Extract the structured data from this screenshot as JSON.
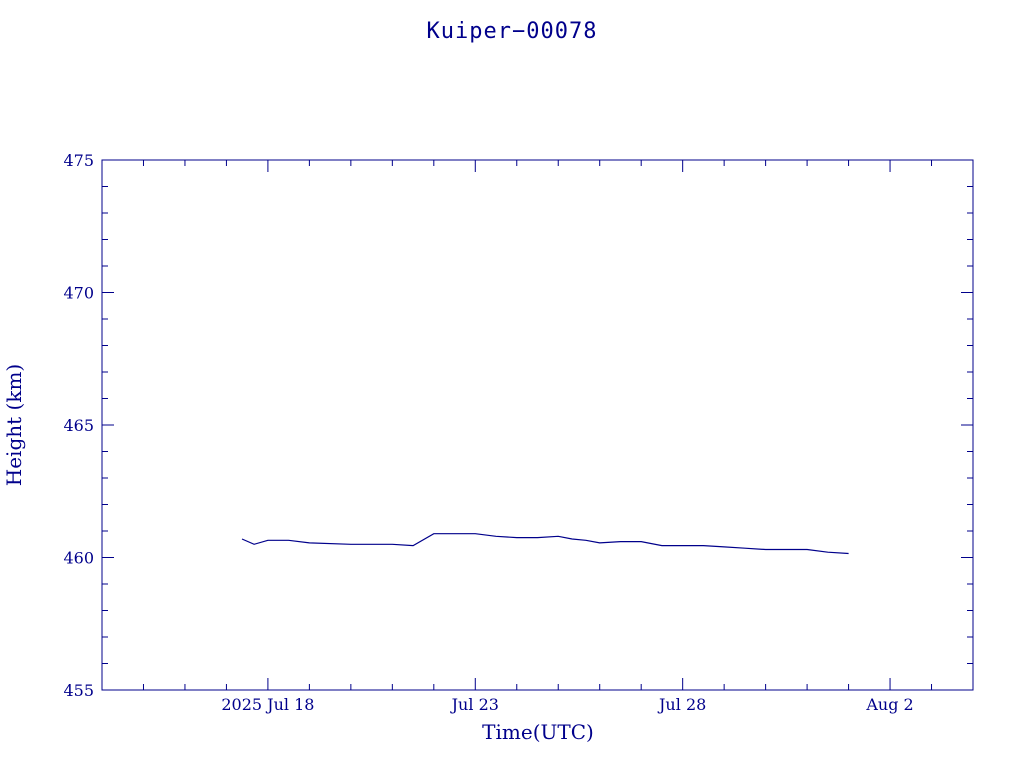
{
  "chart_data": {
    "type": "line",
    "title": "Kuiper−00078",
    "xlabel": "Time(UTC)",
    "ylabel": "Height (km)",
    "x_unit": "days",
    "xlim": [
      "2025-07-14",
      "2025-08-04"
    ],
    "ylim": [
      455,
      475
    ],
    "y_ticks": [
      455,
      460,
      465,
      470,
      475
    ],
    "x_ticks": [
      {
        "date": "2025-07-18",
        "label": "2025 Jul 18"
      },
      {
        "date": "2025-07-23",
        "label": "Jul 23"
      },
      {
        "date": "2025-07-28",
        "label": "Jul 28"
      },
      {
        "date": "2025-08-02",
        "label": "Aug  2"
      }
    ],
    "grid": false,
    "color": "#00008b",
    "series": [
      {
        "x": [
          "2025-07-17 09:00",
          "2025-07-17 16:00",
          "2025-07-18 00:00",
          "2025-07-18 12:00",
          "2025-07-19 00:00",
          "2025-07-20 00:00",
          "2025-07-21 00:00",
          "2025-07-21 12:00",
          "2025-07-22 00:00",
          "2025-07-22 12:00",
          "2025-07-23 00:00",
          "2025-07-23 12:00",
          "2025-07-24 00:00",
          "2025-07-24 12:00",
          "2025-07-25 00:00",
          "2025-07-25 08:00",
          "2025-07-25 16:00",
          "2025-07-26 00:00",
          "2025-07-26 12:00",
          "2025-07-27 00:00",
          "2025-07-27 12:00",
          "2025-07-28 00:00",
          "2025-07-28 12:00",
          "2025-07-29 00:00",
          "2025-07-29 12:00",
          "2025-07-30 00:00",
          "2025-07-30 12:00",
          "2025-07-31 00:00",
          "2025-07-31 12:00",
          "2025-08-01 00:00"
        ],
        "y": [
          460.7,
          460.5,
          460.65,
          460.65,
          460.55,
          460.5,
          460.5,
          460.45,
          460.9,
          460.9,
          460.9,
          460.8,
          460.75,
          460.75,
          460.8,
          460.7,
          460.65,
          460.55,
          460.6,
          460.6,
          460.45,
          460.45,
          460.45,
          460.4,
          460.35,
          460.3,
          460.3,
          460.3,
          460.2,
          460.15
        ]
      }
    ]
  }
}
